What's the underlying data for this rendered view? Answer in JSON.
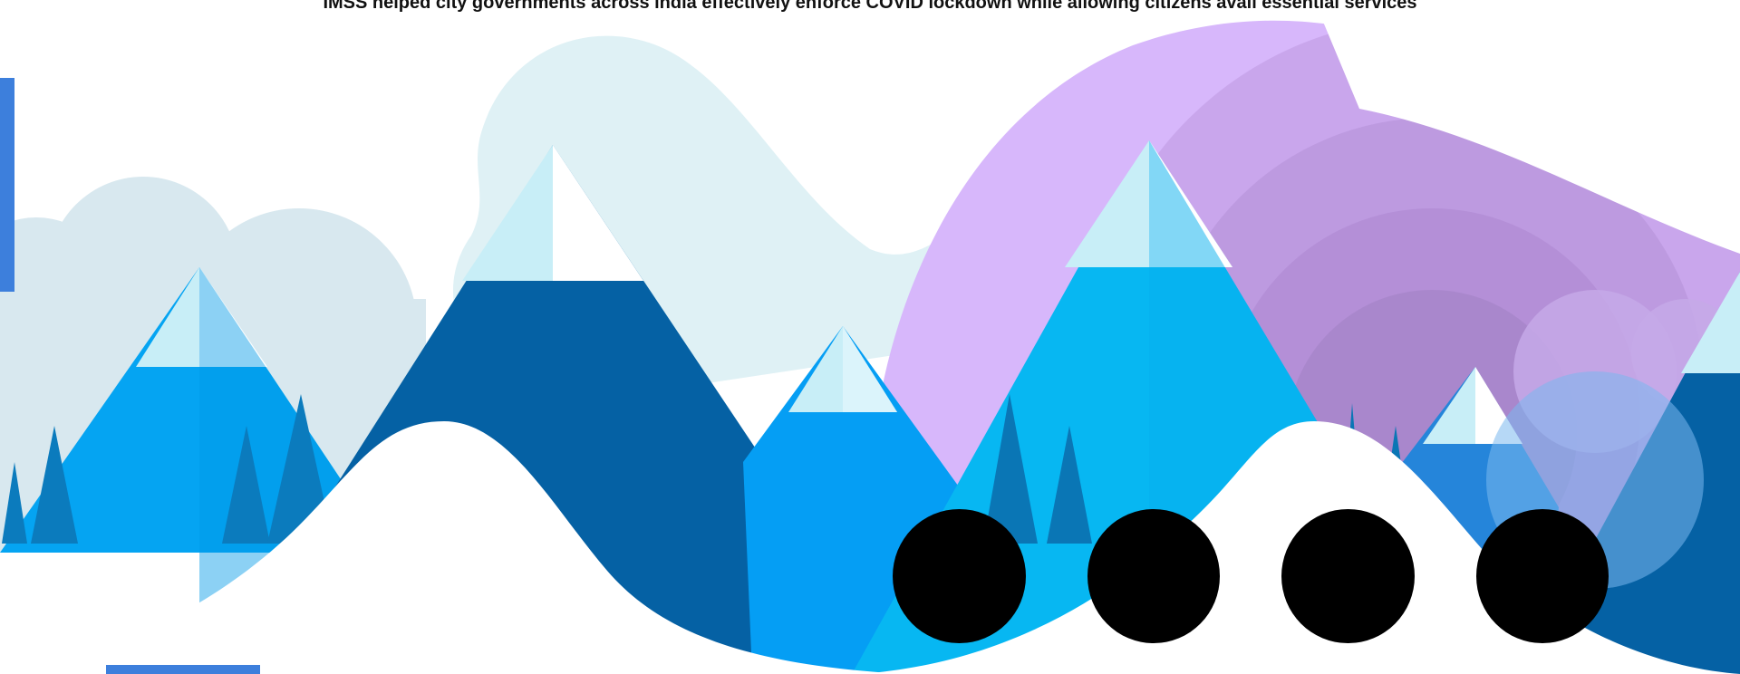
{
  "banner": {
    "headline": "IMSS helped city governments across india effectively enforce COVID lockdown while allowing citizens avail essential services"
  },
  "slider": {
    "dots": [
      {
        "label": ""
      },
      {
        "label": ""
      },
      {
        "label": ""
      },
      {
        "label": ""
      }
    ]
  },
  "colors": {
    "accent": "#3d7fdc",
    "sky_cloud": "#dff1f5",
    "purple": "#d5b6fb",
    "mountain_dark": "#0462a5",
    "mountain_light": "#05aef5",
    "dot": "#000000"
  }
}
